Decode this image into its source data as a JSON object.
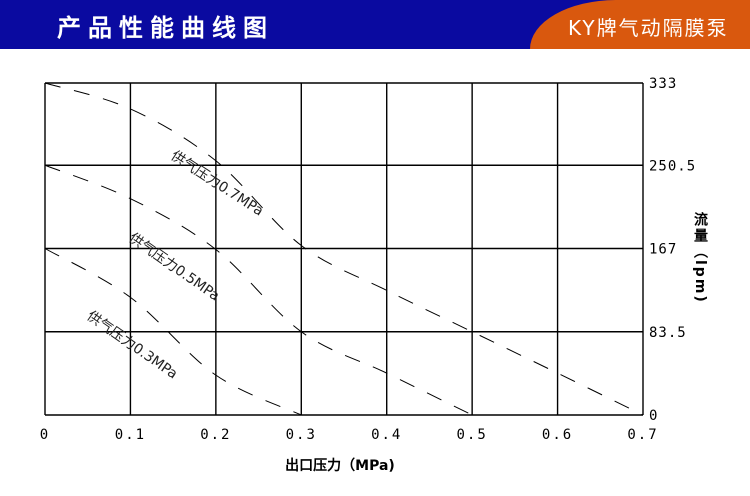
{
  "header": {
    "title": "产品性能曲线图",
    "brand": "KY牌气动隔膜泵"
  },
  "colors": {
    "header_bg": "#0a0aa0",
    "brand_bg": "#d9580e"
  },
  "chart_data": {
    "type": "line",
    "xlabel": "出口压力（MPa)",
    "ylabel": "流量（lpm)",
    "xlim": [
      0,
      0.7
    ],
    "ylim": [
      0,
      333
    ],
    "x_ticks": [
      "0",
      "0.1",
      "0.2",
      "0.3",
      "0.4",
      "0.5",
      "0.6",
      "0.7"
    ],
    "y_ticks": [
      "0",
      "83.5",
      "167",
      "250.5",
      "333"
    ],
    "grid": true,
    "series": [
      {
        "name": "供气压力0.7MPa",
        "x": [
          0,
          0.1,
          0.2,
          0.3,
          0.4,
          0.5,
          0.6,
          0.7
        ],
        "y": [
          333,
          307,
          255,
          170,
          125,
          83.5,
          42,
          0
        ]
      },
      {
        "name": "供气压力0.5MPa",
        "x": [
          0,
          0.1,
          0.2,
          0.3,
          0.4,
          0.5
        ],
        "y": [
          250.5,
          217,
          166,
          83.5,
          42,
          0
        ]
      },
      {
        "name": "供气压力0.3MPa",
        "x": [
          0,
          0.1,
          0.2,
          0.3
        ],
        "y": [
          167,
          118,
          40,
          0
        ]
      }
    ]
  }
}
